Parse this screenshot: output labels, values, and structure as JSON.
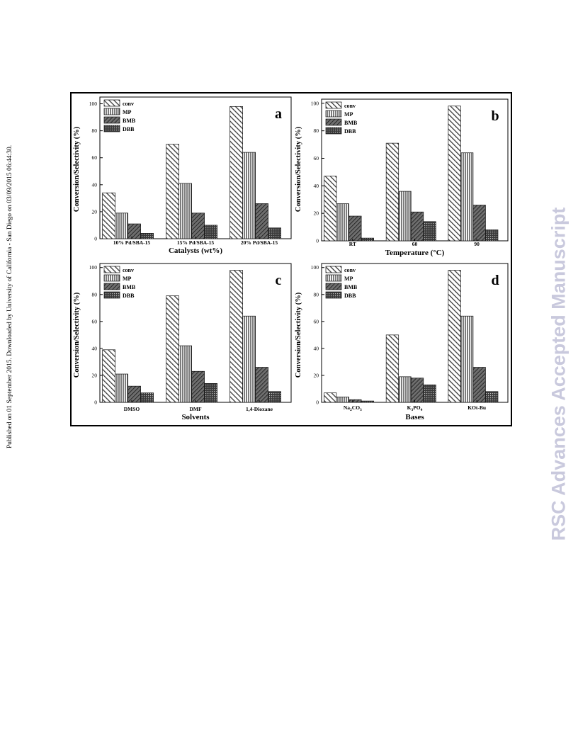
{
  "page": {
    "side_note": "Published on 01 September 2015. Downloaded by University of California - San Diego on 03/09/2015 06:44:30.",
    "watermark": "RSC Advances Accepted Manuscript"
  },
  "chart_data": [
    {
      "panel": "a",
      "type": "bar",
      "xlabel": "Catalysts (wt%)",
      "ylabel": "Conversion/Selectivity (%)",
      "ylim": [
        0,
        105
      ],
      "yticks": [
        0,
        20,
        40,
        60,
        80,
        100
      ],
      "categories": [
        "10% Pd/SBA-15",
        "15% Pd/SBA-15",
        "20% Pd/SBA-15"
      ],
      "legend_position": "top-left",
      "series": [
        {
          "name": "conv",
          "values": [
            34,
            70,
            98
          ]
        },
        {
          "name": "MP",
          "values": [
            19,
            41,
            64
          ]
        },
        {
          "name": "BMB",
          "values": [
            11,
            19,
            26
          ]
        },
        {
          "name": "DBB",
          "values": [
            4,
            10,
            8
          ]
        }
      ]
    },
    {
      "panel": "b",
      "type": "bar",
      "xlabel": "Temperature (°C)",
      "ylabel": "Conversion/Selectivity (%)",
      "ylim": [
        0,
        103
      ],
      "yticks": [
        0,
        20,
        40,
        60,
        80,
        100
      ],
      "categories": [
        "RT",
        "60",
        "90"
      ],
      "legend_position": "top-left",
      "series": [
        {
          "name": "conv",
          "values": [
            47,
            71,
            98
          ]
        },
        {
          "name": "MP",
          "values": [
            27,
            36,
            64
          ]
        },
        {
          "name": "BMB",
          "values": [
            18,
            21,
            26
          ]
        },
        {
          "name": "DBB",
          "values": [
            2,
            14,
            8
          ]
        }
      ]
    },
    {
      "panel": "c",
      "type": "bar",
      "xlabel": "Solvents",
      "ylabel": "Conversion/Selectivity (%)",
      "ylim": [
        0,
        103
      ],
      "yticks": [
        0,
        20,
        40,
        60,
        80,
        100
      ],
      "categories": [
        "DMSO",
        "DMF",
        "1,4-Dioxane"
      ],
      "legend_position": "top-left",
      "series": [
        {
          "name": "conv",
          "values": [
            39,
            79,
            98
          ]
        },
        {
          "name": "MP",
          "values": [
            21,
            42,
            64
          ]
        },
        {
          "name": "BMB",
          "values": [
            12,
            23,
            26
          ]
        },
        {
          "name": "DBB",
          "values": [
            7,
            14,
            8
          ]
        }
      ]
    },
    {
      "panel": "d",
      "type": "bar",
      "xlabel": "Bases",
      "ylabel": "Conversion/Selectivity (%)",
      "ylim": [
        0,
        103
      ],
      "yticks": [
        0,
        20,
        40,
        60,
        80,
        100
      ],
      "categories": [
        {
          "base": "Na",
          "sub": "2",
          "base2": "CO",
          "sub2": "3"
        },
        {
          "base": "K",
          "sub": "3",
          "base2": "PO",
          "sub2": "4"
        },
        {
          "base": "KOt-Bu",
          "sub": "",
          "base2": "",
          "sub2": ""
        }
      ],
      "legend_position": "top-left",
      "series": [
        {
          "name": "conv",
          "values": [
            7,
            50,
            98
          ]
        },
        {
          "name": "MP",
          "values": [
            4,
            19,
            64
          ]
        },
        {
          "name": "BMB",
          "values": [
            2,
            18,
            26
          ]
        },
        {
          "name": "DBB",
          "values": [
            1,
            13,
            8
          ]
        }
      ]
    }
  ]
}
